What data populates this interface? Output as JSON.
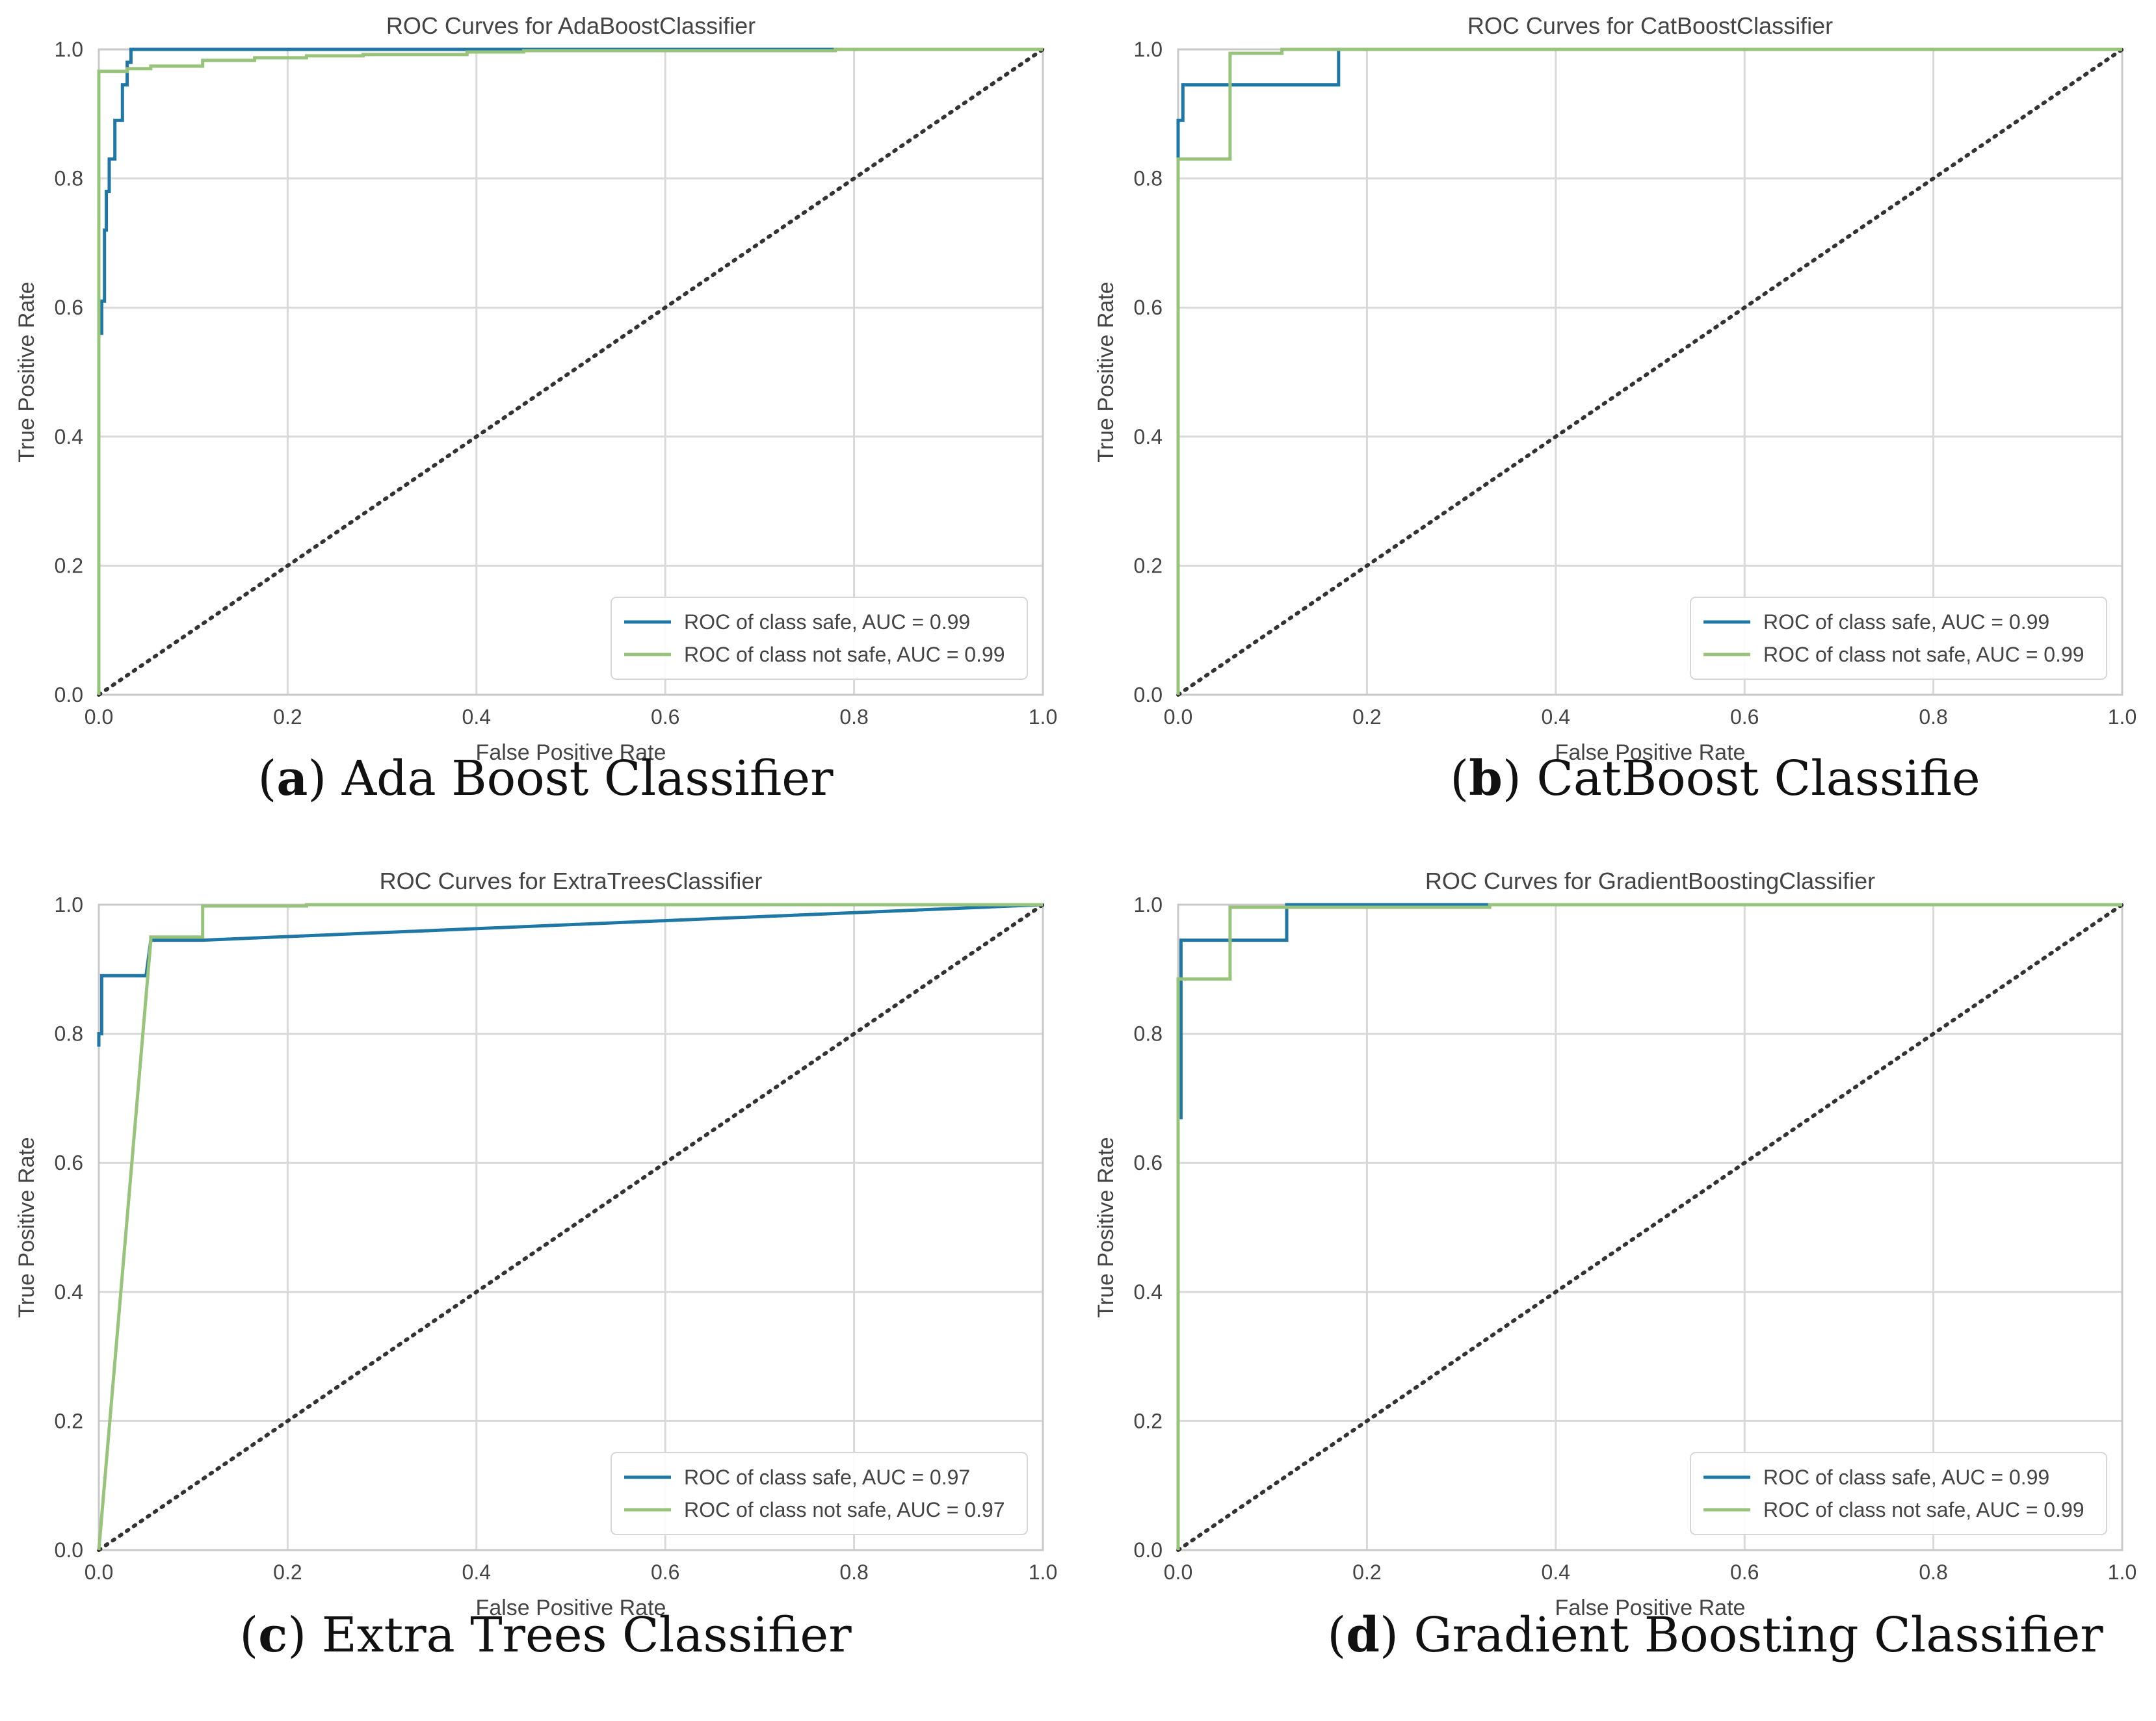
{
  "colors": {
    "safe": "#1f77a6",
    "not_safe": "#97c47a",
    "diagonal": "#333333",
    "grid": "#d9d9d9",
    "axis_text": "#444444",
    "frame": "#c8c8c8"
  },
  "legend_labels": {
    "safe_prefix": "ROC of class safe, AUC = ",
    "not_safe_prefix": "ROC of class not safe, AUC = "
  },
  "chart_data": [
    {
      "type": "line",
      "title": "ROC Curves for AdaBoostClassifier",
      "xlabel": "False Positive Rate",
      "ylabel": "True Positive Rate",
      "xlim": [
        0.0,
        1.0
      ],
      "ylim": [
        0.0,
        1.0
      ],
      "xticks": [
        "0.0",
        "0.2",
        "0.4",
        "0.6",
        "0.8",
        "1.0"
      ],
      "yticks": [
        "0.0",
        "0.2",
        "0.4",
        "0.6",
        "0.8",
        "1.0"
      ],
      "grid": true,
      "legend_position": "lower-right",
      "caption_letter": "a",
      "caption_text": " Ada Boost Classifier",
      "series": [
        {
          "name": "ROC of class safe, AUC = 0.99",
          "label": "ROC of class safe, AUC = 0.99",
          "color_key": "safe",
          "x": [
            0,
            0,
            0.003,
            0.003,
            0.006,
            0.006,
            0.008,
            0.008,
            0.011,
            0.011,
            0.017,
            0.017,
            0.025,
            0.025,
            0.03,
            0.03,
            0.034,
            0.034,
            1.0
          ],
          "y": [
            0.22,
            0.56,
            0.56,
            0.61,
            0.61,
            0.72,
            0.72,
            0.78,
            0.78,
            0.83,
            0.83,
            0.89,
            0.89,
            0.945,
            0.945,
            0.98,
            0.98,
            1.0,
            1.0
          ]
        },
        {
          "name": "ROC of class not safe, AUC = 0.99",
          "label": "ROC of class not safe, AUC = 0.99",
          "color_key": "not_safe",
          "x": [
            0,
            0,
            0.03,
            0.03,
            0.055,
            0.055,
            0.11,
            0.11,
            0.165,
            0.165,
            0.22,
            0.22,
            0.28,
            0.28,
            0.39,
            0.39,
            0.45,
            0.45,
            0.78,
            0.78,
            1.0
          ],
          "y": [
            0,
            0.966,
            0.966,
            0.97,
            0.97,
            0.974,
            0.974,
            0.983,
            0.983,
            0.987,
            0.987,
            0.99,
            0.99,
            0.992,
            0.992,
            0.996,
            0.996,
            0.998,
            0.998,
            1.0,
            1.0
          ]
        }
      ]
    },
    {
      "type": "line",
      "title": "ROC Curves for CatBoostClassifier",
      "xlabel": "False Positive Rate",
      "ylabel": "True Positive Rate",
      "xlim": [
        0.0,
        1.0
      ],
      "ylim": [
        0.0,
        1.0
      ],
      "xticks": [
        "0.0",
        "0.2",
        "0.4",
        "0.6",
        "0.8",
        "1.0"
      ],
      "yticks": [
        "0.0",
        "0.2",
        "0.4",
        "0.6",
        "0.8",
        "1.0"
      ],
      "grid": true,
      "legend_position": "lower-right",
      "caption_letter": "b",
      "caption_text": " CatBoost Classifie",
      "series": [
        {
          "name": "ROC of class safe, AUC = 0.99",
          "label": "ROC of class safe, AUC = 0.99",
          "color_key": "safe",
          "x": [
            0,
            0,
            0.005,
            0.005,
            0.17,
            0.17,
            1.0
          ],
          "y": [
            0,
            0.89,
            0.89,
            0.945,
            0.945,
            1.0,
            1.0
          ]
        },
        {
          "name": "ROC of class not safe, AUC = 0.99",
          "label": "ROC of class not safe, AUC = 0.99",
          "color_key": "not_safe",
          "x": [
            0,
            0,
            0.055,
            0.055,
            0.11,
            0.11,
            1.0
          ],
          "y": [
            0,
            0.83,
            0.83,
            0.994,
            0.994,
            1.0,
            1.0
          ]
        }
      ]
    },
    {
      "type": "line",
      "title": "ROC Curves for ExtraTreesClassifier",
      "xlabel": "False Positive Rate",
      "ylabel": "True Positive Rate",
      "xlim": [
        0.0,
        1.0
      ],
      "ylim": [
        0.0,
        1.0
      ],
      "xticks": [
        "0.0",
        "0.2",
        "0.4",
        "0.6",
        "0.8",
        "1.0"
      ],
      "yticks": [
        "0.0",
        "0.2",
        "0.4",
        "0.6",
        "0.8",
        "1.0"
      ],
      "grid": true,
      "legend_position": "lower-right",
      "caption_letter": "c",
      "caption_text": " Extra Trees Classifier",
      "series": [
        {
          "name": "ROC of class safe, AUC = 0.97",
          "label": "ROC of class safe, AUC = 0.97",
          "color_key": "safe",
          "x": [
            0,
            0,
            0.003,
            0.003,
            0.05,
            0.055,
            0.11,
            1.0
          ],
          "y": [
            0.78,
            0.8,
            0.8,
            0.89,
            0.89,
            0.945,
            0.945,
            1.0
          ]
        },
        {
          "name": "ROC of class not safe, AUC = 0.97",
          "label": "ROC of class not safe, AUC = 0.97",
          "color_key": "not_safe",
          "x": [
            0,
            0.055,
            0.055,
            0.11,
            0.11,
            0.22,
            0.22,
            1.0
          ],
          "y": [
            0,
            0.944,
            0.95,
            0.95,
            0.998,
            0.998,
            1.0,
            1.0
          ]
        }
      ]
    },
    {
      "type": "line",
      "title": "ROC Curves for GradientBoostingClassifier",
      "xlabel": "False Positive Rate",
      "ylabel": "True Positive Rate",
      "xlim": [
        0.0,
        1.0
      ],
      "ylim": [
        0.0,
        1.0
      ],
      "xticks": [
        "0.0",
        "0.2",
        "0.4",
        "0.6",
        "0.8",
        "1.0"
      ],
      "yticks": [
        "0.0",
        "0.2",
        "0.4",
        "0.6",
        "0.8",
        "1.0"
      ],
      "grid": true,
      "legend_position": "lower-right",
      "caption_letter": "d",
      "caption_text": " Gradient Boosting Classifier",
      "series": [
        {
          "name": "ROC of class safe, AUC = 0.99",
          "label": "ROC of class safe, AUC = 0.99",
          "color_key": "safe",
          "x": [
            0,
            0,
            0.003,
            0.003,
            0.115,
            0.115,
            1.0
          ],
          "y": [
            0,
            0.67,
            0.67,
            0.945,
            0.945,
            1.0,
            1.0
          ]
        },
        {
          "name": "ROC of class not safe, AUC = 0.99",
          "label": "ROC of class not safe, AUC = 0.99",
          "color_key": "not_safe",
          "x": [
            0,
            0,
            0.055,
            0.055,
            0.33,
            0.33,
            1.0
          ],
          "y": [
            0,
            0.885,
            0.885,
            0.996,
            0.996,
            1.0,
            1.0
          ]
        }
      ]
    }
  ]
}
